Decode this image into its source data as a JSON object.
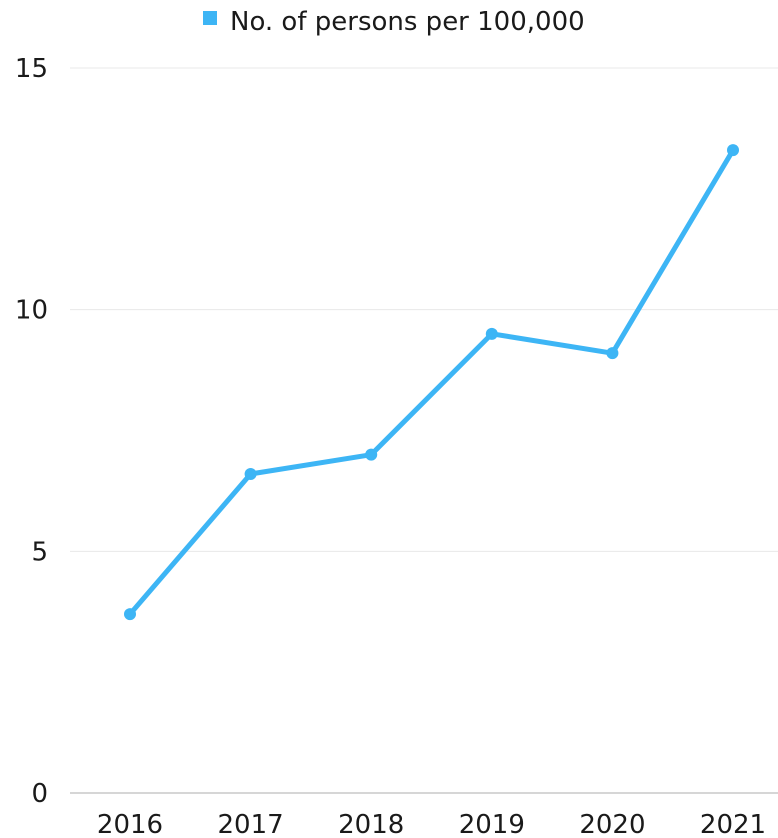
{
  "chart_data": {
    "type": "line",
    "title": "",
    "xlabel": "",
    "ylabel": "",
    "categories": [
      "2016",
      "2017",
      "2018",
      "2019",
      "2020",
      "2021"
    ],
    "series": [
      {
        "name": "No. of persons per 100,000",
        "values": [
          3.7,
          6.6,
          7.0,
          9.5,
          9.1,
          13.3
        ],
        "color": "#3db5f5"
      }
    ],
    "ylim": [
      0,
      15
    ],
    "yticks": [
      0,
      5,
      10,
      15
    ],
    "grid": true,
    "legend_position": "top-center"
  }
}
